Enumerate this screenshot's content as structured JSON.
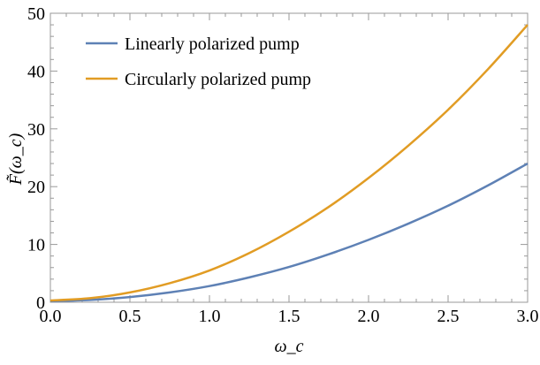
{
  "chart_data": {
    "type": "line",
    "title": "",
    "xlabel": "ω_c",
    "ylabel": "F̃(ω_c)",
    "xlim": [
      0,
      3
    ],
    "ylim": [
      0,
      50
    ],
    "x_ticks": [
      "0.0",
      "0.5",
      "1.0",
      "1.5",
      "2.0",
      "2.5",
      "3.0"
    ],
    "y_ticks": [
      "0",
      "10",
      "20",
      "30",
      "40",
      "50"
    ],
    "grid": false,
    "legend_position": "top-left",
    "x": [
      0,
      0.25,
      0.5,
      0.75,
      1.0,
      1.25,
      1.5,
      1.75,
      2.0,
      2.25,
      2.5,
      2.75,
      3.0
    ],
    "series": [
      {
        "name": "Linearly polarized pump",
        "color": "#5e81b5",
        "values": [
          0.2,
          0.4,
          0.9,
          1.7,
          2.8,
          4.3,
          6.1,
          8.3,
          10.8,
          13.6,
          16.7,
          20.2,
          24.0
        ]
      },
      {
        "name": "Circularly polarized pump",
        "color": "#e19c24",
        "values": [
          0.3,
          0.7,
          1.7,
          3.3,
          5.5,
          8.5,
          12.2,
          16.5,
          21.5,
          27.1,
          33.3,
          40.3,
          48.0
        ]
      }
    ]
  }
}
